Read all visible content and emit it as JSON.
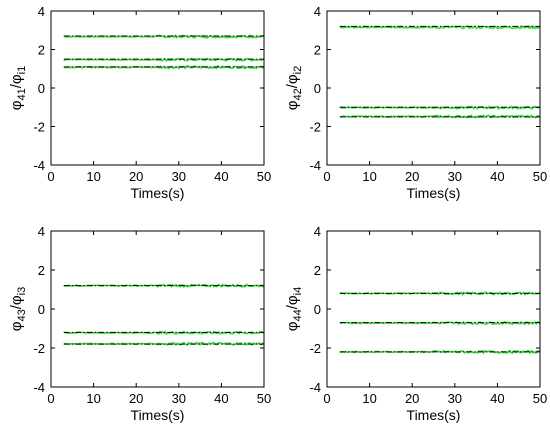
{
  "chart_data": [
    {
      "type": "line",
      "xlabel": "Times(s)",
      "ylabel_main": "φ",
      "ylabel_sub1": "41",
      "ylabel_mid": "/φ",
      "ylabel_sub2": "i1",
      "xlim": [
        0,
        50
      ],
      "ylim": [
        -4,
        4
      ],
      "xticks": [
        0,
        10,
        20,
        30,
        40,
        50
      ],
      "yticks": [
        -4,
        -2,
        0,
        2,
        4
      ],
      "grid": false,
      "x_range": [
        3,
        50
      ],
      "reference_levels": [
        2.7,
        1.5,
        1.1
      ],
      "estimate_levels": [
        2.67,
        1.47,
        1.08
      ]
    },
    {
      "type": "line",
      "xlabel": "Times(s)",
      "ylabel_main": "φ",
      "ylabel_sub1": "42",
      "ylabel_mid": "/φ",
      "ylabel_sub2": "i2",
      "xlim": [
        0,
        50
      ],
      "ylim": [
        -4,
        4
      ],
      "xticks": [
        0,
        10,
        20,
        30,
        40,
        50
      ],
      "yticks": [
        -4,
        -2,
        0,
        2,
        4
      ],
      "grid": false,
      "x_range": [
        3,
        50
      ],
      "reference_levels": [
        3.2,
        -1.0,
        -1.5
      ],
      "estimate_levels": [
        3.15,
        -1.02,
        -1.48
      ]
    },
    {
      "type": "line",
      "xlabel": "Times(s)",
      "ylabel_main": "φ",
      "ylabel_sub1": "43",
      "ylabel_mid": "/φ",
      "ylabel_sub2": "i3",
      "xlim": [
        0,
        50
      ],
      "ylim": [
        -4,
        4
      ],
      "xticks": [
        0,
        10,
        20,
        30,
        40,
        50
      ],
      "yticks": [
        -4,
        -2,
        0,
        2,
        4
      ],
      "grid": false,
      "x_range": [
        3,
        50
      ],
      "reference_levels": [
        1.2,
        -1.2,
        -1.8
      ],
      "estimate_levels": [
        1.2,
        -1.22,
        -1.78
      ]
    },
    {
      "type": "line",
      "xlabel": "Times(s)",
      "ylabel_main": "φ",
      "ylabel_sub1": "44",
      "ylabel_mid": "/φ",
      "ylabel_sub2": "i4",
      "xlim": [
        0,
        50
      ],
      "ylim": [
        -4,
        4
      ],
      "xticks": [
        0,
        10,
        20,
        30,
        40,
        50
      ],
      "yticks": [
        -4,
        -2,
        0,
        2,
        4
      ],
      "grid": false,
      "x_range": [
        3,
        50
      ],
      "reference_levels": [
        0.8,
        -0.7,
        -2.2
      ],
      "estimate_levels": [
        0.8,
        -0.72,
        -2.2
      ]
    }
  ],
  "colors": {
    "reference": "#000000",
    "estimate": "#33dd33"
  }
}
